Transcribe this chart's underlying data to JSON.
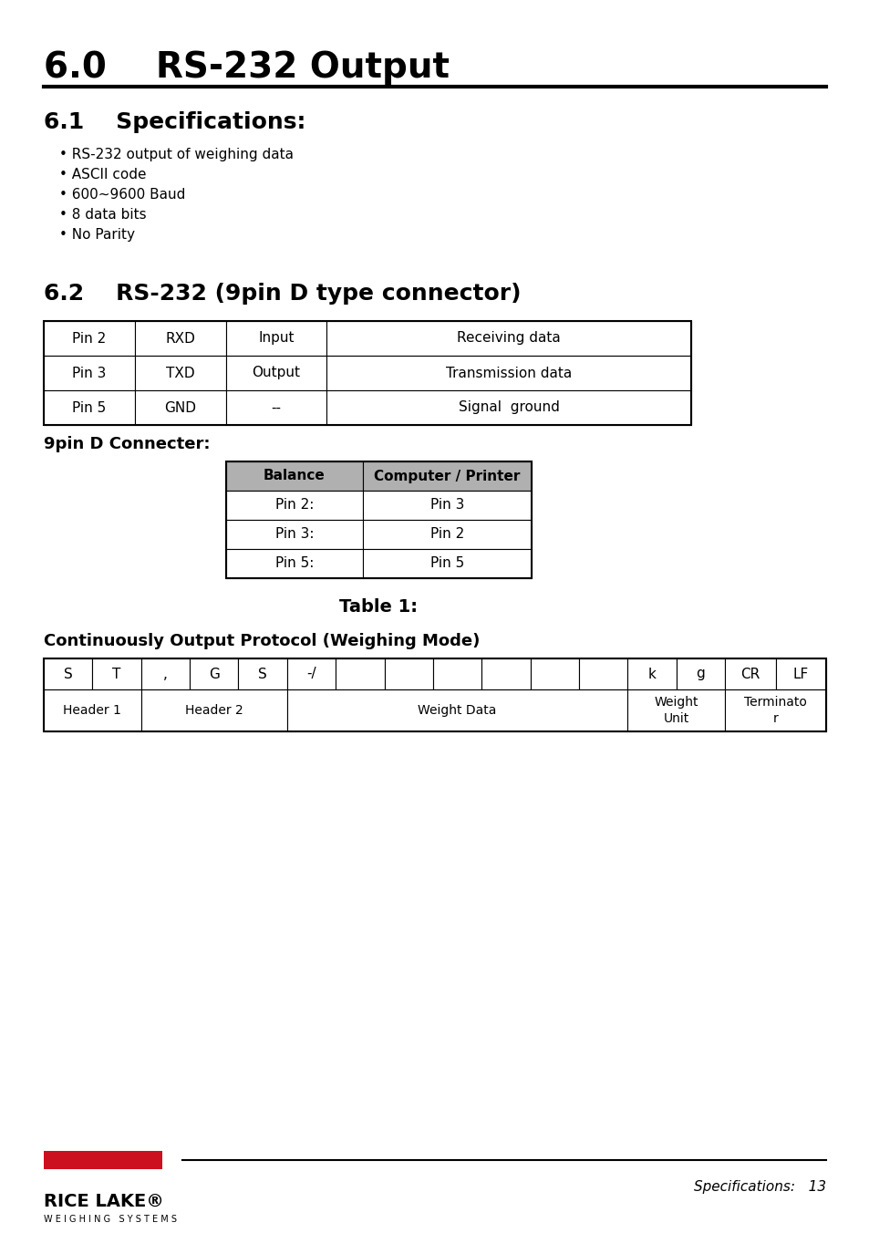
{
  "title_section": "6.0    RS-232 Output",
  "section_61_title": "6.1    Specifications:",
  "spec_bullets": [
    "RS-232 output of weighing data",
    "ASCII code",
    "600~9600 Baud",
    "8 data bits",
    "No Parity"
  ],
  "section_62_title": "6.2    RS-232 (9pin D type connector)",
  "connector_table": {
    "rows": [
      [
        "Pin 2",
        "RXD",
        "Input",
        "Receiving data"
      ],
      [
        "Pin 3",
        "TXD",
        "Output",
        "Transmission data"
      ],
      [
        "Pin 5",
        "GND",
        "--",
        "Signal  ground"
      ]
    ]
  },
  "subheading_9pin": "9pin D Connecter:",
  "inner_table": {
    "headers": [
      "Balance",
      "Computer / Printer"
    ],
    "rows": [
      [
        "Pin 2:",
        "Pin 3"
      ],
      [
        "Pin 3:",
        "Pin 2"
      ],
      [
        "Pin 5:",
        "Pin 5"
      ]
    ]
  },
  "table1_caption": "Table 1:",
  "protocol_heading": "Continuously Output Protocol (Weighing Mode)",
  "protocol_top_row": [
    "S",
    "T",
    ",",
    "G",
    "S",
    "-/",
    "",
    "",
    "",
    "",
    "",
    "",
    "k",
    "g",
    "CR",
    "LF"
  ],
  "bottom_spans": [
    {
      "text": "Header 1",
      "start": 0,
      "end": 2
    },
    {
      "text": "Header 2",
      "start": 2,
      "end": 5
    },
    {
      "text": "Weight Data",
      "start": 5,
      "end": 12
    },
    {
      "text": "Weight\nUnit",
      "start": 12,
      "end": 14
    },
    {
      "text": "Terminato\nr",
      "start": 14,
      "end": 16
    }
  ],
  "footer_right": "Specifications:   13",
  "bg_color": "#ffffff",
  "text_color": "#000000",
  "header_bg": "#b0b0b0",
  "red_bar": "#cc1020"
}
